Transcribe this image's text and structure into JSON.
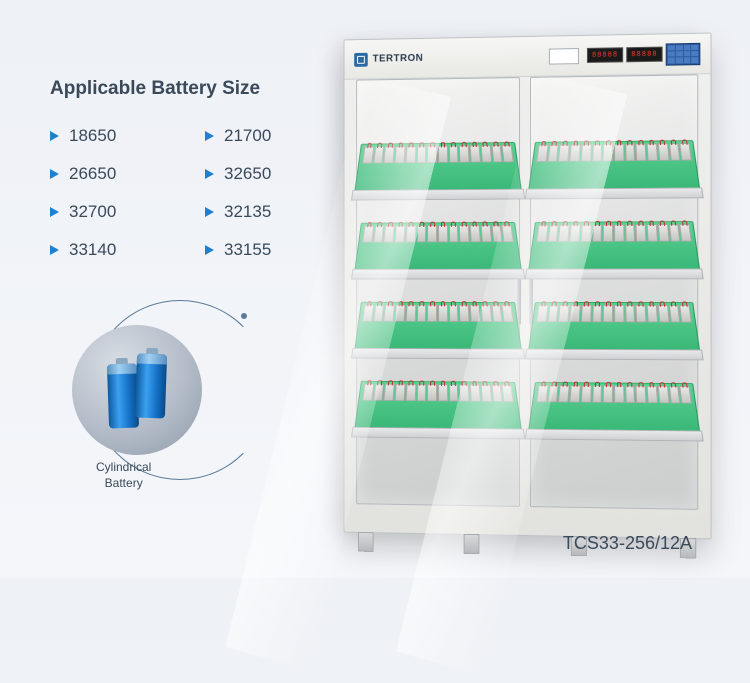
{
  "title": "Applicable Battery Size",
  "sizes": {
    "col1": [
      "18650",
      "26650",
      "32700",
      "33140"
    ],
    "col2": [
      "21700",
      "32650",
      "32135",
      "33155"
    ]
  },
  "battery_label_line1": "Cylindrical",
  "battery_label_line2": "Battery",
  "model": "TCS33-256/12A",
  "brand": "TERTRON",
  "led1": "88888",
  "led2": "88888",
  "colors": {
    "accent": "#2080d0",
    "text": "#3a4a5a",
    "pcb": "#3ab878",
    "battery_blue": "#1570c5",
    "led_red": "#ff3a2a",
    "keypad_blue": "#2a5aa0"
  },
  "slots_per_tray": 14,
  "trays_per_door": 4
}
